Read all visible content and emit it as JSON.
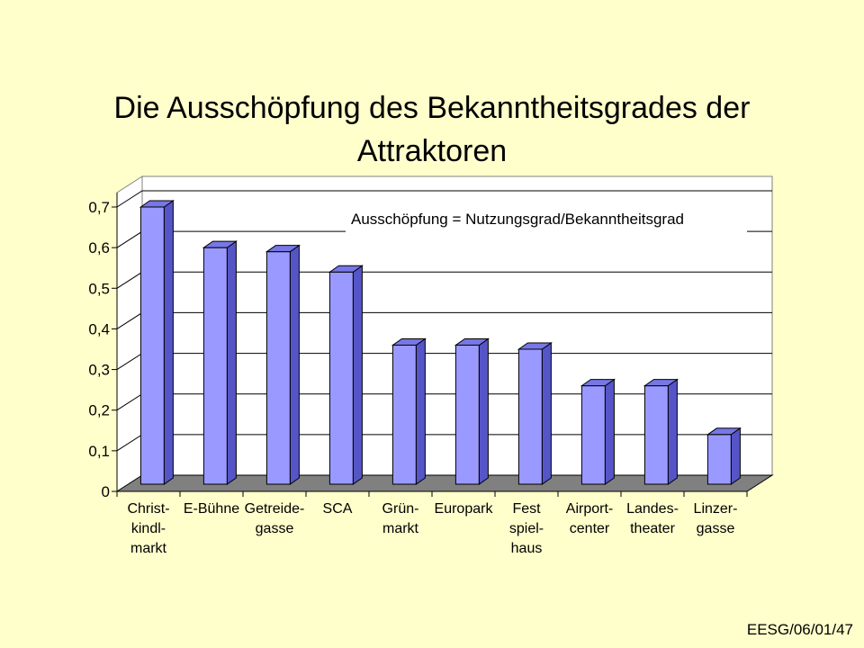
{
  "slide": {
    "title_line1": "Die Ausschöpfung des Bekanntheitsgrades der",
    "title_line2": "Attraktoren",
    "footer": "EESG/06/01/47"
  },
  "colors": {
    "background": "#FFFFCC",
    "bar_front": "#9999FF",
    "bar_side": "#5555C8",
    "bar_top": "#7777E6",
    "floor": "#808080",
    "wall": "#FFFFFF"
  },
  "chart_data": {
    "type": "bar",
    "title": "Die Ausschöpfung des Bekanntheitsgrades der Attraktoren",
    "annotation": "Ausschöpfung = Nutzungsgrad/Bekanntheitsgrad",
    "categories": [
      [
        "Christ-",
        "kindl-",
        "markt"
      ],
      [
        "E-Bühne"
      ],
      [
        "Getreide-",
        "gasse"
      ],
      [
        "SCA"
      ],
      [
        "Grün-",
        "markt"
      ],
      [
        "Europark"
      ],
      [
        "Fest",
        "spiel-",
        "haus"
      ],
      [
        "Airport-",
        "center"
      ],
      [
        "Landes-",
        "theater"
      ],
      [
        "Linzer-",
        "gasse"
      ]
    ],
    "values": [
      0.7,
      0.6,
      0.59,
      0.54,
      0.36,
      0.36,
      0.35,
      0.26,
      0.26,
      0.14
    ],
    "y_ticks": [
      "0",
      "0,1",
      "0,2",
      "0,3",
      "0,4",
      "0,5",
      "0,6",
      "0,7"
    ],
    "ylim": [
      0,
      0.7
    ],
    "grid": true,
    "style_3d": true
  }
}
